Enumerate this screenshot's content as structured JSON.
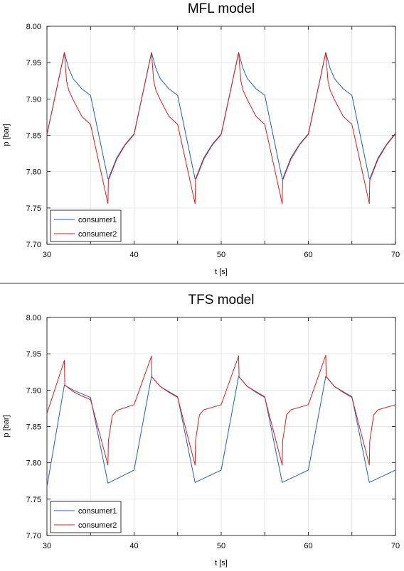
{
  "colors": {
    "consumer1": "#1f5fb4",
    "consumer2": "#d81e1e",
    "grid": "#e6e6e6",
    "separator": "#999999"
  },
  "chart_data": [
    {
      "type": "line",
      "title": "MFL model",
      "xlabel": "t [s]",
      "ylabel": "p [bar]",
      "xlim": [
        30,
        70
      ],
      "ylim": [
        7.7,
        8.0
      ],
      "xticks": [
        "30",
        "40",
        "50",
        "60",
        "70"
      ],
      "yticks": [
        "7.70",
        "7.75",
        "7.80",
        "7.85",
        "7.90",
        "7.95",
        "8.00"
      ],
      "grid": true,
      "legend_position": "bottom-left",
      "series": [
        {
          "name": "consumer1",
          "color": "#1f5fb4",
          "x": [
            30,
            32,
            32.5,
            33,
            34,
            35,
            37,
            37.05,
            38,
            39,
            40,
            42,
            42.5,
            43,
            44,
            45,
            47,
            47.05,
            48,
            49,
            50,
            52,
            52.5,
            53,
            54,
            55,
            57,
            57.05,
            58,
            59,
            60,
            62,
            62.5,
            63,
            64,
            65,
            67,
            67.05,
            68,
            69,
            70
          ],
          "y": [
            7.851,
            7.964,
            7.942,
            7.928,
            7.914,
            7.905,
            7.79,
            7.79,
            7.819,
            7.838,
            7.852,
            7.964,
            7.942,
            7.928,
            7.914,
            7.905,
            7.79,
            7.79,
            7.819,
            7.838,
            7.852,
            7.964,
            7.942,
            7.928,
            7.914,
            7.905,
            7.79,
            7.79,
            7.819,
            7.838,
            7.852,
            7.964,
            7.942,
            7.928,
            7.914,
            7.905,
            7.79,
            7.79,
            7.819,
            7.838,
            7.853
          ]
        },
        {
          "name": "consumer2",
          "color": "#d81e1e",
          "x": [
            30,
            32,
            32.25,
            32.5,
            33,
            34,
            35,
            37,
            37.05,
            38,
            39,
            40,
            42,
            42.25,
            42.5,
            43,
            44,
            45,
            47,
            47.05,
            48,
            49,
            50,
            52,
            52.25,
            52.5,
            53,
            54,
            55,
            57,
            57.05,
            58,
            59,
            60,
            62,
            62.25,
            62.5,
            63,
            64,
            65,
            67,
            67.05,
            68,
            69,
            70
          ],
          "y": [
            7.851,
            7.964,
            7.925,
            7.912,
            7.899,
            7.876,
            7.865,
            7.756,
            7.788,
            7.817,
            7.837,
            7.851,
            7.964,
            7.925,
            7.912,
            7.899,
            7.876,
            7.865,
            7.756,
            7.788,
            7.817,
            7.837,
            7.851,
            7.964,
            7.925,
            7.912,
            7.899,
            7.876,
            7.865,
            7.756,
            7.788,
            7.817,
            7.837,
            7.851,
            7.964,
            7.925,
            7.912,
            7.899,
            7.876,
            7.865,
            7.756,
            7.788,
            7.817,
            7.837,
            7.852
          ]
        }
      ]
    },
    {
      "type": "line",
      "title": "TFS model",
      "xlabel": "t [s]",
      "ylabel": "p [bar]",
      "xlim": [
        30,
        70
      ],
      "ylim": [
        7.7,
        8.0
      ],
      "xticks": [
        "30",
        "40",
        "50",
        "60",
        "70"
      ],
      "yticks": [
        "7.70",
        "7.75",
        "7.80",
        "7.85",
        "7.90",
        "7.95",
        "8.00"
      ],
      "grid": true,
      "legend_position": "bottom-left",
      "series": [
        {
          "name": "consumer1",
          "color": "#1f5fb4",
          "x": [
            30,
            32,
            33,
            34,
            35,
            37,
            40,
            42,
            43,
            44,
            45,
            47,
            50,
            52,
            53,
            54,
            55,
            57,
            60,
            62,
            63,
            64,
            65,
            67,
            70
          ],
          "y": [
            7.767,
            7.907,
            7.9,
            7.895,
            7.89,
            7.772,
            7.79,
            7.919,
            7.905,
            7.898,
            7.891,
            7.773,
            7.79,
            7.919,
            7.905,
            7.898,
            7.891,
            7.773,
            7.79,
            7.919,
            7.905,
            7.898,
            7.891,
            7.773,
            7.79
          ]
        },
        {
          "name": "consumer2",
          "color": "#d81e1e",
          "x": [
            30,
            32,
            32.05,
            33,
            34,
            35,
            37,
            37.05,
            37.5,
            38,
            40,
            42,
            42.05,
            43,
            44,
            45,
            47,
            47.05,
            47.5,
            48,
            50,
            52,
            52.05,
            53,
            54,
            55,
            57,
            57.05,
            57.5,
            58,
            60,
            62,
            62.05,
            63,
            64,
            65,
            67,
            67.05,
            67.5,
            68,
            70
          ],
          "y": [
            7.868,
            7.941,
            7.907,
            7.898,
            7.892,
            7.887,
            7.797,
            7.83,
            7.865,
            7.872,
            7.88,
            7.947,
            7.918,
            7.905,
            7.897,
            7.89,
            7.797,
            7.83,
            7.866,
            7.873,
            7.88,
            7.947,
            7.918,
            7.905,
            7.897,
            7.89,
            7.797,
            7.83,
            7.866,
            7.873,
            7.88,
            7.948,
            7.919,
            7.905,
            7.897,
            7.89,
            7.797,
            7.83,
            7.866,
            7.873,
            7.88
          ]
        }
      ]
    }
  ]
}
